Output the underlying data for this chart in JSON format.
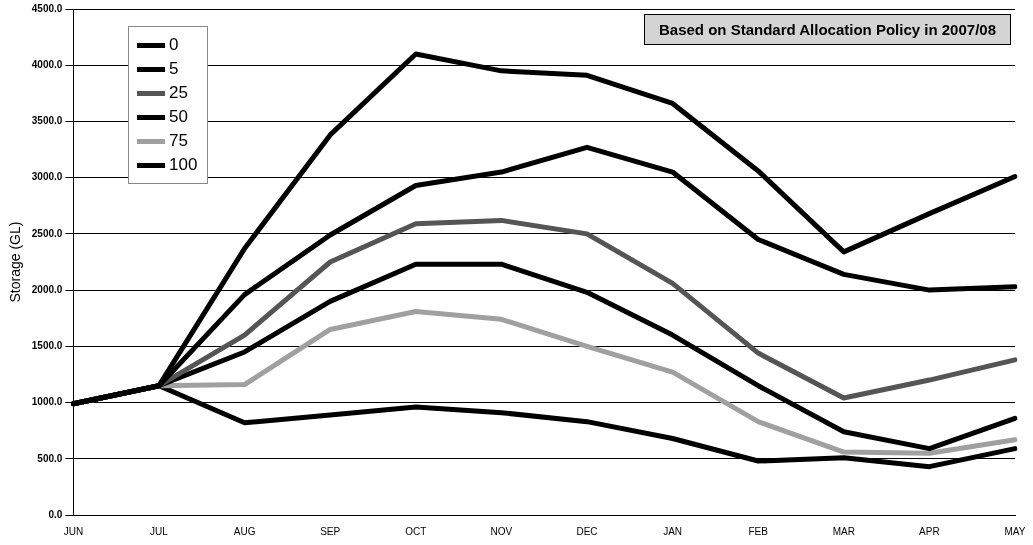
{
  "chart_data": {
    "type": "line",
    "ylabel": "Storage (GL)",
    "annotations": [
      "Based on Standard Allocation Policy in 2007/08"
    ],
    "categories": [
      "JUN",
      "JUL",
      "AUG",
      "SEP",
      "OCT",
      "NOV",
      "DEC",
      "JAN",
      "FEB",
      "MAR",
      "APR",
      "MAY"
    ],
    "series": [
      {
        "name": "0",
        "color": "#000000",
        "values": [
          990,
          1150,
          2370,
          3380,
          4100,
          3950,
          3910,
          3660,
          3060,
          2340,
          2680,
          3010
        ]
      },
      {
        "name": "5",
        "color": "#000000",
        "values": [
          990,
          1150,
          1960,
          2490,
          2930,
          3050,
          3270,
          3050,
          2450,
          2140,
          2000,
          2030
        ]
      },
      {
        "name": "25",
        "color": "#555555",
        "values": [
          990,
          1150,
          1600,
          2250,
          2590,
          2620,
          2500,
          2060,
          1440,
          1040,
          1200,
          1380
        ]
      },
      {
        "name": "50",
        "color": "#000000",
        "values": [
          990,
          1150,
          1450,
          1900,
          2230,
          2230,
          1980,
          1600,
          1150,
          740,
          590,
          860
        ]
      },
      {
        "name": "75",
        "color": "#a0a0a0",
        "values": [
          990,
          1150,
          1160,
          1650,
          1810,
          1740,
          1500,
          1270,
          830,
          560,
          550,
          670
        ]
      },
      {
        "name": "100",
        "color": "#000000",
        "values": [
          990,
          1150,
          820,
          890,
          960,
          910,
          830,
          680,
          480,
          510,
          430,
          590
        ]
      }
    ],
    "ylim": [
      0,
      4500
    ],
    "yticks": [
      {
        "value": 0,
        "label": "0.0"
      },
      {
        "value": 500,
        "label": "500.0"
      },
      {
        "value": 1000,
        "label": "1000.0"
      },
      {
        "value": 1500,
        "label": "1500.0"
      },
      {
        "value": 2000,
        "label": "2000.0"
      },
      {
        "value": 2500,
        "label": "2500.0"
      },
      {
        "value": 3000,
        "label": "3000.0"
      },
      {
        "value": 3500,
        "label": "3500.0"
      },
      {
        "value": 4000,
        "label": "4000.0"
      },
      {
        "value": 4500,
        "label": "4500.0"
      }
    ],
    "grid": "y",
    "legend": "top left",
    "marker": "none",
    "line_style": "solid"
  }
}
